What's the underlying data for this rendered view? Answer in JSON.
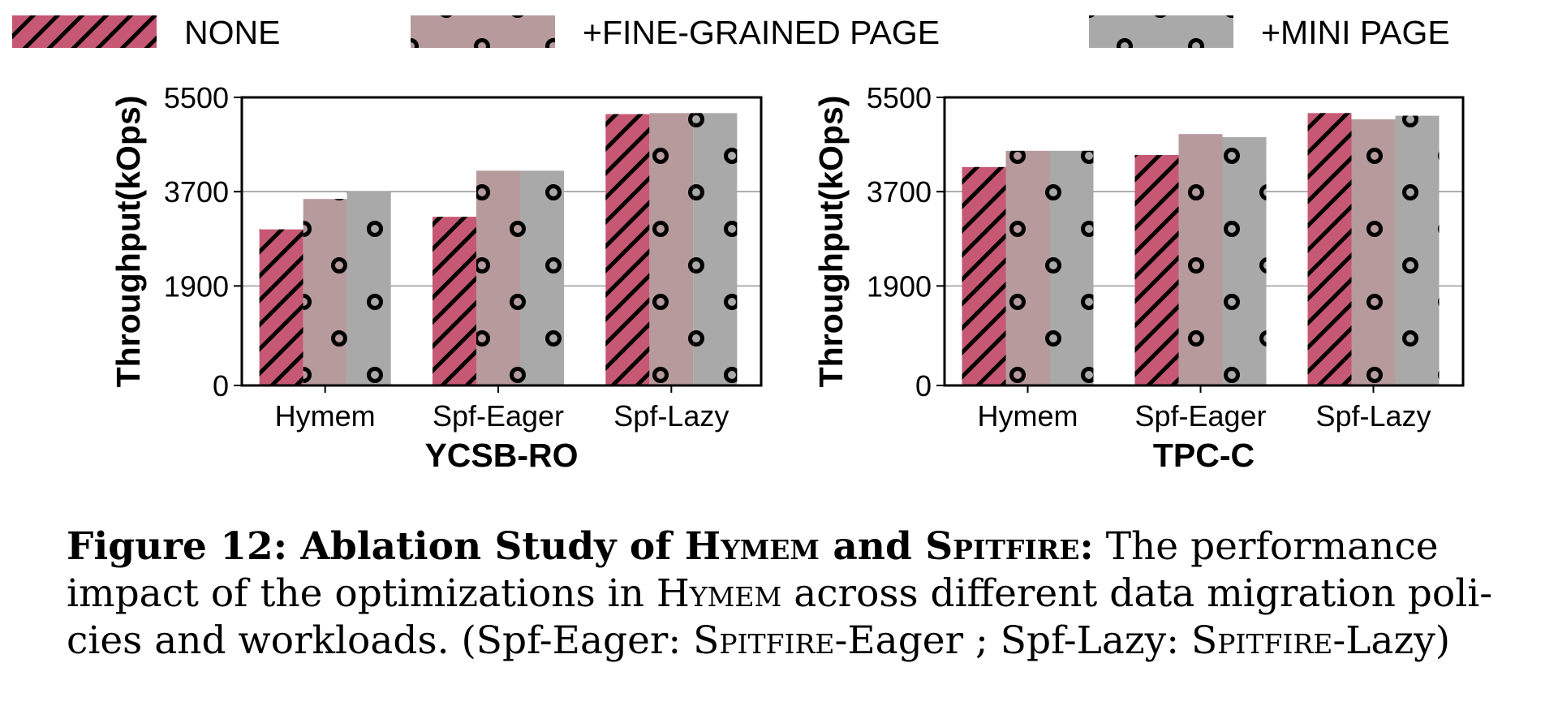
{
  "legend": [
    {
      "name": "NONE",
      "color": "#c65873",
      "pattern": "hatch"
    },
    {
      "name": "+FINE-GRAINED PAGE",
      "color": "#b69a9c",
      "pattern": "dots"
    },
    {
      "name": "+MINI PAGE",
      "color": "#a9a9a9",
      "pattern": "dots"
    }
  ],
  "chart_data": [
    {
      "type": "bar",
      "title": "YCSB-RO",
      "ylabel": "Throughput(kOps)",
      "xlabel": "",
      "ylim": [
        0,
        5500
      ],
      "yticks": [
        "0",
        "1900",
        "3700",
        "5500"
      ],
      "grid": "horizontal",
      "categories": [
        "Hymem",
        "Spf-Eager",
        "Spf-Lazy"
      ],
      "series": [
        {
          "name": "NONE",
          "values": [
            2980,
            3220,
            5180
          ]
        },
        {
          "name": "+FINE-GRAINED PAGE",
          "values": [
            3560,
            4100,
            5200
          ]
        },
        {
          "name": "+MINI PAGE",
          "values": [
            3700,
            4100,
            5200
          ]
        }
      ]
    },
    {
      "type": "bar",
      "title": "TPC-C",
      "ylabel": "Throughput(kOps)",
      "xlabel": "",
      "ylim": [
        0,
        5500
      ],
      "yticks": [
        "0",
        "1900",
        "3700",
        "5500"
      ],
      "grid": "horizontal",
      "categories": [
        "Hymem",
        "Spf-Eager",
        "Spf-Lazy"
      ],
      "series": [
        {
          "name": "NONE",
          "values": [
            4170,
            4400,
            5200
          ]
        },
        {
          "name": "+FINE-GRAINED PAGE",
          "values": [
            4480,
            4800,
            5080
          ]
        },
        {
          "name": "+MINI PAGE",
          "values": [
            4480,
            4740,
            5150
          ]
        }
      ]
    }
  ],
  "caption": {
    "line1_bold": "Figure 12: Ablation Study of ",
    "hymem": "Hymem",
    "and": " and ",
    "spitfire": "Spitfire",
    "colon": ":",
    "line1_rest": " The performance",
    "line2_a": "impact of the optimizations in ",
    "line2_hymem": "Hymem",
    "line2_b": " across different data migration poli-",
    "line3_a": "cies and workloads. (Spf-Eager: ",
    "line3_sp1": "Spitfire",
    "line3_b": "-Eager ; Spf-Lazy: ",
    "line3_sp2": "Spitfire",
    "line3_c": "-Lazy)"
  }
}
